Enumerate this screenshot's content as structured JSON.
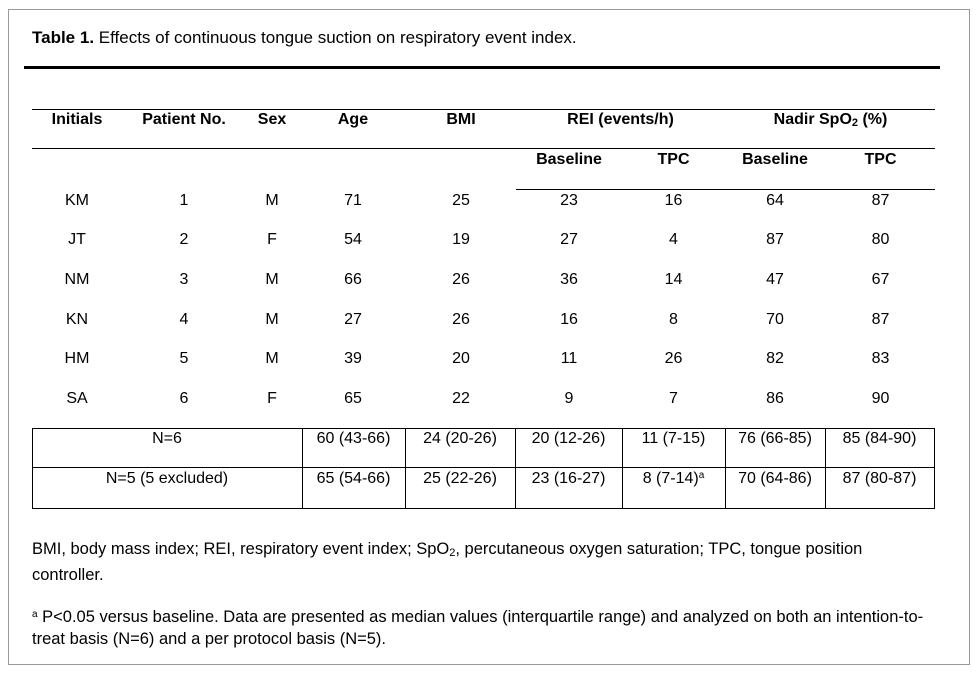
{
  "title": {
    "label": "Table 1.",
    "text": "Effects of continuous tongue suction on respiratory event index."
  },
  "headers": {
    "initials": "Initials",
    "patient_no": "Patient No.",
    "sex": "Sex",
    "age": "Age",
    "bmi": "BMI",
    "rei": "REI (events/h)",
    "nadir_pre": "Nadir SpO",
    "nadir_sub": "2",
    "nadir_post": " (%)",
    "baseline": "Baseline",
    "tpc": "TPC"
  },
  "rows": [
    [
      "KM",
      "1",
      "M",
      "71",
      "25",
      "23",
      "16",
      "64",
      "87"
    ],
    [
      "JT",
      "2",
      "F",
      "54",
      "19",
      "27",
      "4",
      "87",
      "80"
    ],
    [
      "NM",
      "3",
      "M",
      "66",
      "26",
      "36",
      "14",
      "47",
      "67"
    ],
    [
      "KN",
      "4",
      "M",
      "27",
      "26",
      "16",
      "8",
      "70",
      "87"
    ],
    [
      "HM",
      "5",
      "M",
      "39",
      "20",
      "11",
      "26",
      "82",
      "83"
    ],
    [
      "SA",
      "6",
      "F",
      "65",
      "22",
      "9",
      "7",
      "86",
      "90"
    ]
  ],
  "summary": [
    {
      "label": "N=6",
      "age": "60 (43-66)",
      "bmi": "24 (20-26)",
      "rei_base": "20 (12-26)",
      "rei_tpc": "11 (7-15)",
      "rei_tpc_sup": "",
      "spo2_base": "76 (66-85)",
      "spo2_tpc": "85 (84-90)"
    },
    {
      "label": "N=5  (5 excluded)",
      "age": "65 (54-66)",
      "bmi": "25 (22-26)",
      "rei_base": "23 (16-27)",
      "rei_tpc": "8 (7-14)",
      "rei_tpc_sup": "a",
      "spo2_base": "70 (64-86)",
      "spo2_tpc": "87 (80-87)"
    }
  ],
  "notes": {
    "abbrev_1": "BMI, body mass index; REI, respiratory event index; SpO",
    "abbrev_sub": "2",
    "abbrev_2": ", percutaneous oxygen saturation; TPC, tongue position controller.",
    "footnote_mark": "a",
    "footnote": "  P<0.05 versus baseline.  Data are presented as median values (interquartile range) and analyzed on both an intention-to-treat basis (N=6) and a per protocol basis (N=5)."
  }
}
